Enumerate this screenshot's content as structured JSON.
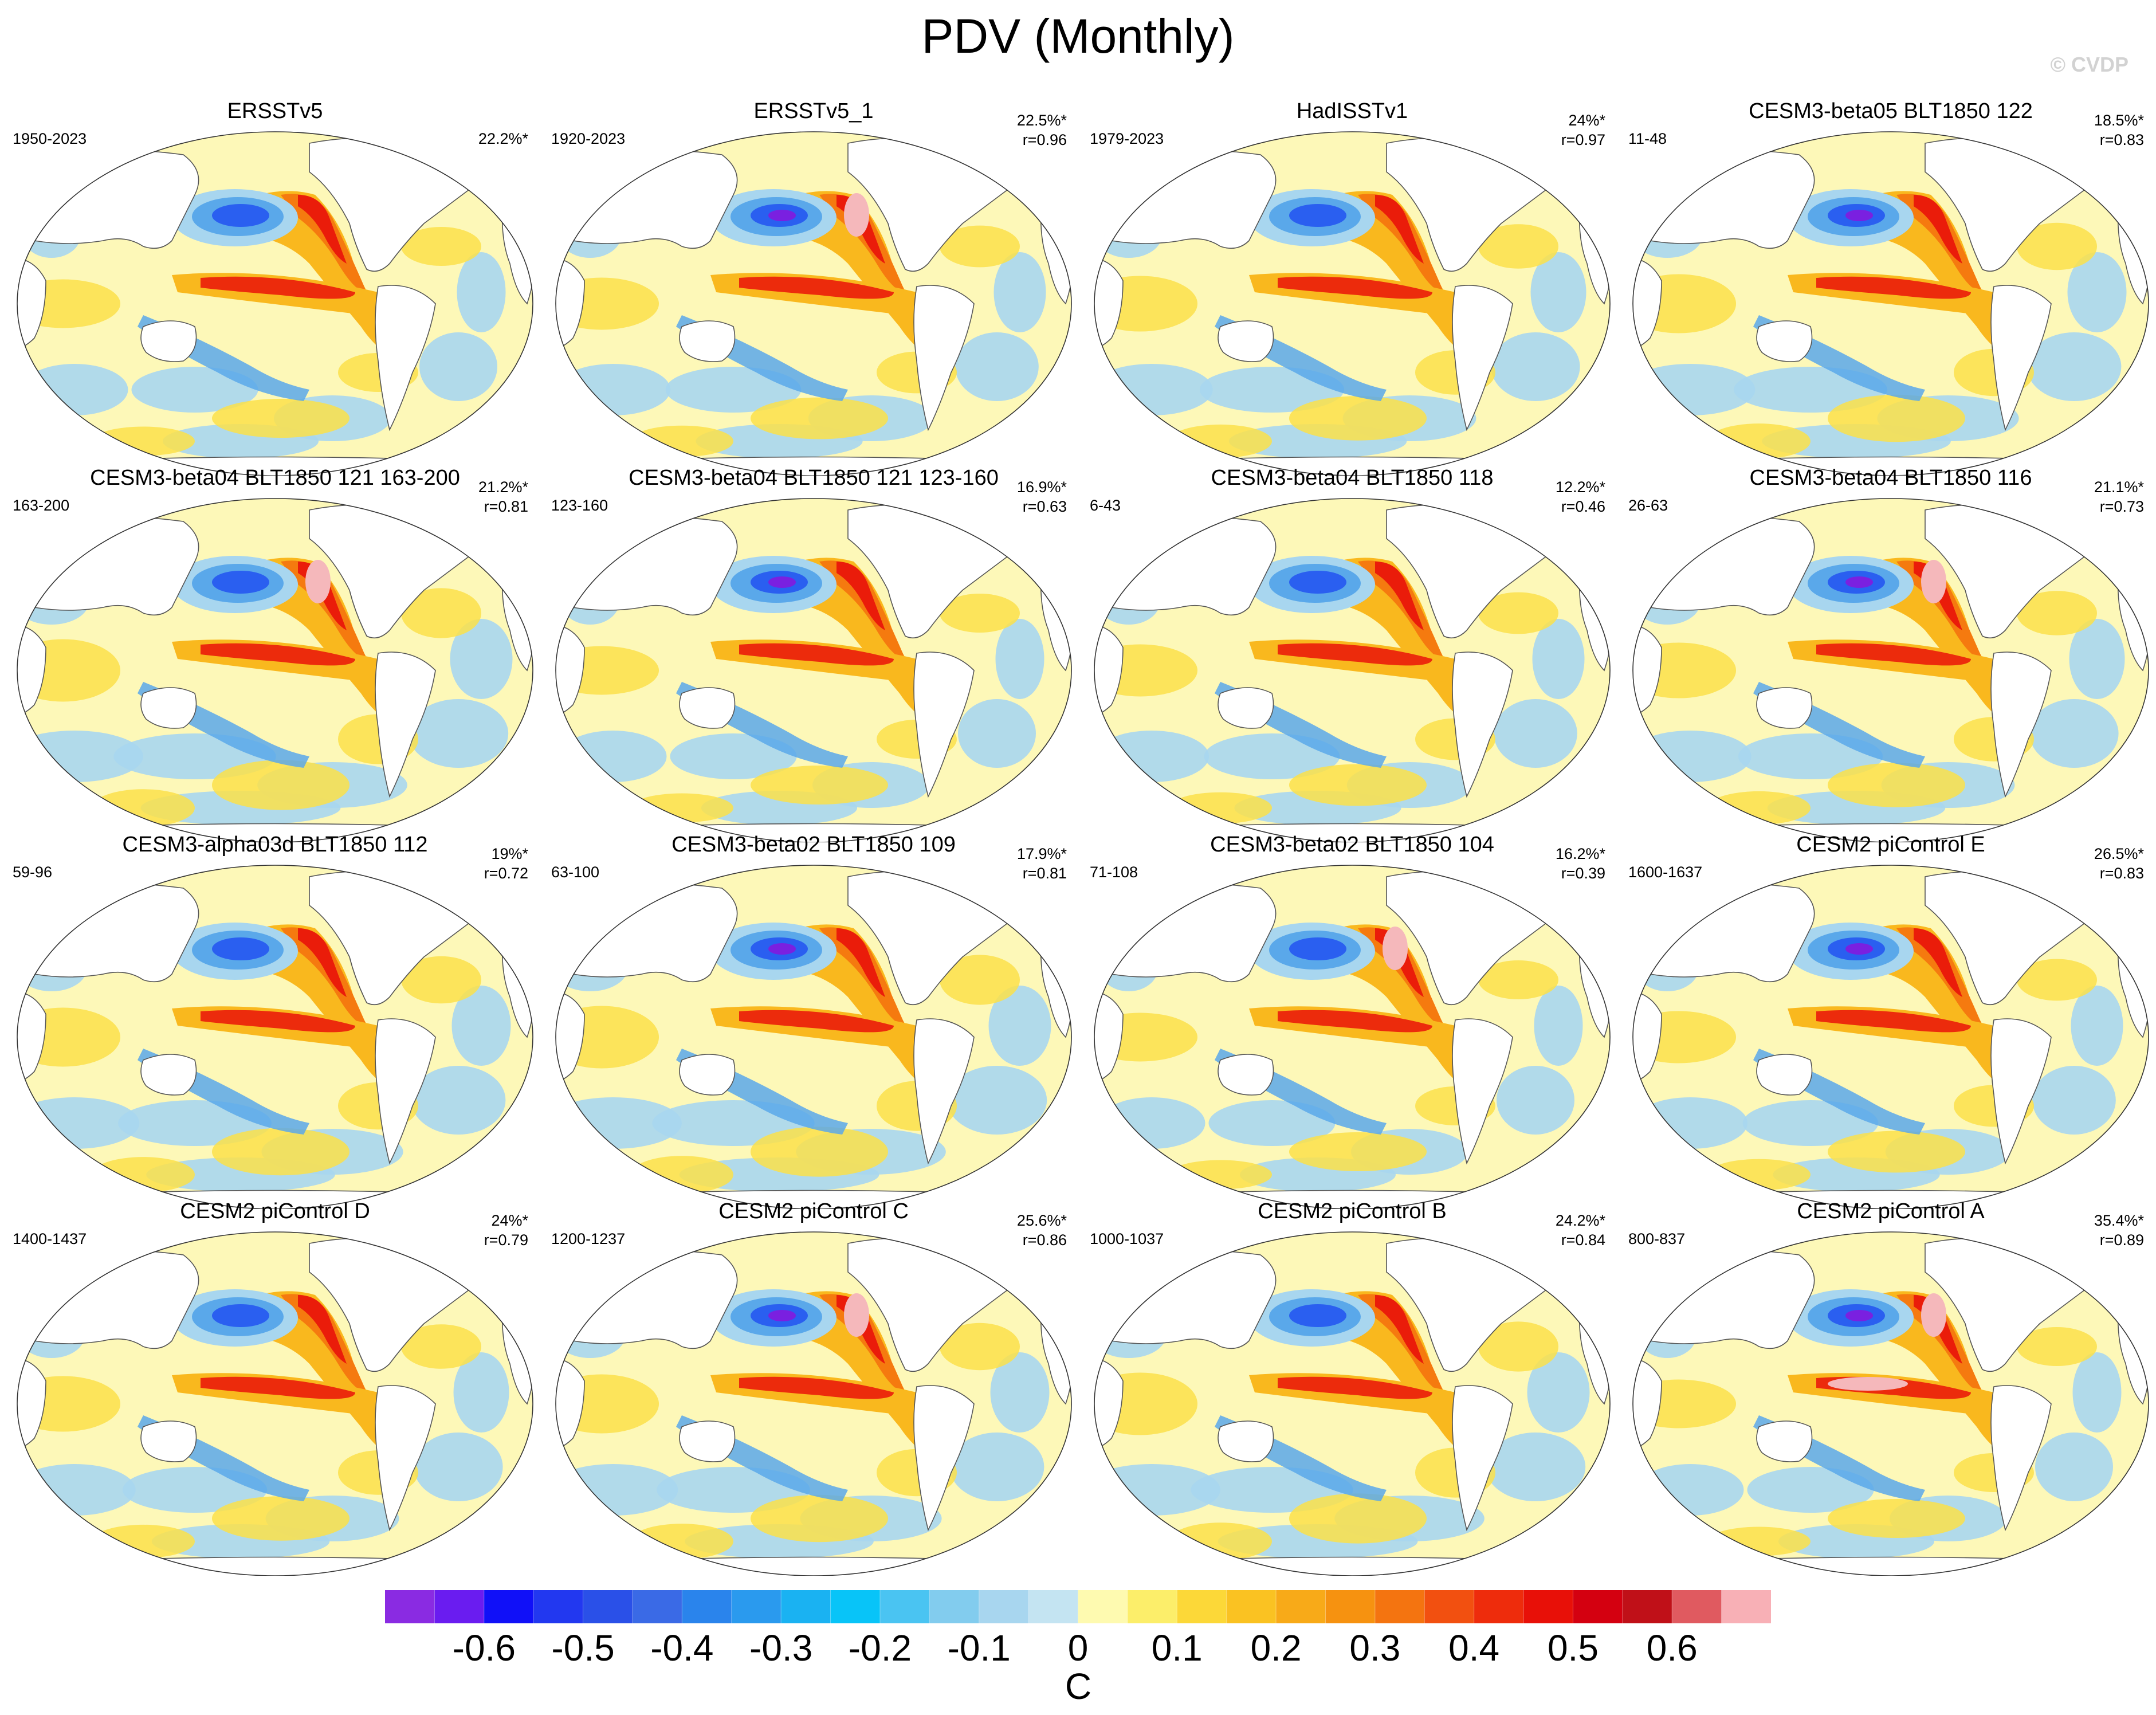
{
  "title": "PDV (Monthly)",
  "copyright": "© CVDP",
  "colors": {
    "ocean_base": "#fdf8b8",
    "pos_1": "#fbe14a",
    "pos_2": "#f9b81e",
    "pos_3": "#f57a0f",
    "pos_4": "#ea1c0a",
    "pos_5": "#c8101e",
    "pos_6": "#f5b8bb",
    "neg_1": "#a8d6ef",
    "neg_2": "#5aa8ea",
    "neg_3": "#2a5ff0",
    "neg_4": "#2a10e8",
    "neg_5": "#7a20e0",
    "land": "#ffffff",
    "coast": "#555555"
  },
  "panels": [
    {
      "title": "ERSSTv5",
      "period": "1950-2023",
      "pct": "22.2%*",
      "r": ""
    },
    {
      "title": "ERSSTv5_1",
      "period": "1920-2023",
      "pct": "22.5%*",
      "r": "r=0.96"
    },
    {
      "title": "HadISSTv1",
      "period": "1979-2023",
      "pct": "24%*",
      "r": "r=0.97"
    },
    {
      "title": "CESM3-beta05 BLT1850 122",
      "period": "11-48",
      "pct": "18.5%*",
      "r": "r=0.83"
    },
    {
      "title": "CESM3-beta04 BLT1850 121 163-200",
      "period": "163-200",
      "pct": "21.2%*",
      "r": "r=0.81"
    },
    {
      "title": "CESM3-beta04 BLT1850 121 123-160",
      "period": "123-160",
      "pct": "16.9%*",
      "r": "r=0.63"
    },
    {
      "title": "CESM3-beta04 BLT1850 118",
      "period": "6-43",
      "pct": "12.2%*",
      "r": "r=0.46"
    },
    {
      "title": "CESM3-beta04 BLT1850 116",
      "period": "26-63",
      "pct": "21.1%*",
      "r": "r=0.73"
    },
    {
      "title": "CESM3-alpha03d BLT1850 112",
      "period": "59-96",
      "pct": "19%*",
      "r": "r=0.72"
    },
    {
      "title": "CESM3-beta02 BLT1850 109",
      "period": "63-100",
      "pct": "17.9%*",
      "r": "r=0.81"
    },
    {
      "title": "CESM3-beta02 BLT1850 104",
      "period": "71-108",
      "pct": "16.2%*",
      "r": "r=0.39"
    },
    {
      "title": "CESM2 piControl E",
      "period": "1600-1637",
      "pct": "26.5%*",
      "r": "r=0.83"
    },
    {
      "title": "CESM2 piControl D",
      "period": "1400-1437",
      "pct": "24%*",
      "r": "r=0.79"
    },
    {
      "title": "CESM2 piControl C",
      "period": "1200-1237",
      "pct": "25.6%*",
      "r": "r=0.86"
    },
    {
      "title": "CESM2 piControl B",
      "period": "1000-1037",
      "pct": "24.2%*",
      "r": "r=0.84"
    },
    {
      "title": "CESM2 piControl A",
      "period": "800-837",
      "pct": "35.4%*",
      "r": "r=0.89"
    }
  ],
  "colorbar": {
    "unit": "C",
    "colors": [
      "#8a2be2",
      "#6a1cf0",
      "#1010f8",
      "#2238f0",
      "#2a50e8",
      "#3a6ae6",
      "#2a84ec",
      "#2a9aee",
      "#1ab2f2",
      "#08c4f8",
      "#4ac4f2",
      "#82ccee",
      "#a8d6ef",
      "#c4e4f2",
      "#fefab0",
      "#fcee6a",
      "#fcd838",
      "#fac222",
      "#f8aa18",
      "#f69210",
      "#f47410",
      "#f25010",
      "#ee2c0c",
      "#e81008",
      "#d40010",
      "#c01018",
      "#e05a60",
      "#f8b0b6"
    ],
    "labels": [
      "-0.6",
      "-0.5",
      "-0.4",
      "-0.3",
      "-0.2",
      "-0.1",
      "0",
      "0.1",
      "0.2",
      "0.3",
      "0.4",
      "0.5",
      "0.6"
    ]
  }
}
